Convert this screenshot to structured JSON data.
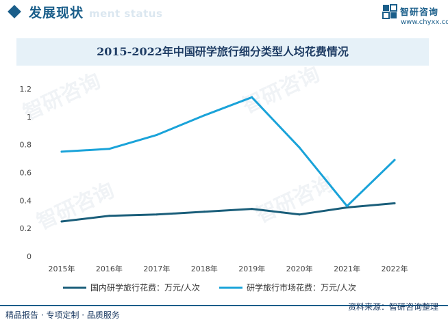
{
  "header": {
    "title": "发展现状",
    "subtitle": "ment status",
    "brand_name": "智研咨询",
    "brand_url": "www.chyxx.com"
  },
  "watermark": {
    "text": "智研咨询"
  },
  "chart_data": {
    "type": "line",
    "title": "2015-2022年中国研学旅行细分类型人均花费情况",
    "categories": [
      "2015年",
      "2016年",
      "2017年",
      "2018年",
      "2019年",
      "2020年",
      "2021年",
      "2022年"
    ],
    "ylim": [
      0,
      1.2
    ],
    "yticks": [
      "0",
      "0.2",
      "0.4",
      "0.6",
      "0.8",
      "1",
      "1.2"
    ],
    "grid": false,
    "legend_position": "bottom",
    "series": [
      {
        "name": "国内研学旅行花费：万元/人次",
        "color": "#1a5e7a",
        "values": [
          0.25,
          0.29,
          0.3,
          0.32,
          0.34,
          0.3,
          0.35,
          0.38
        ]
      },
      {
        "name": "研学旅行市场花费：万元/人次",
        "color": "#1aa3d9",
        "values": [
          0.75,
          0.77,
          0.87,
          1.01,
          1.14,
          0.78,
          0.36,
          0.69
        ]
      }
    ]
  },
  "footer": {
    "left": "精品报告 · 专项定制 · 品质服务",
    "right": "资料来源：智研咨询整理"
  }
}
